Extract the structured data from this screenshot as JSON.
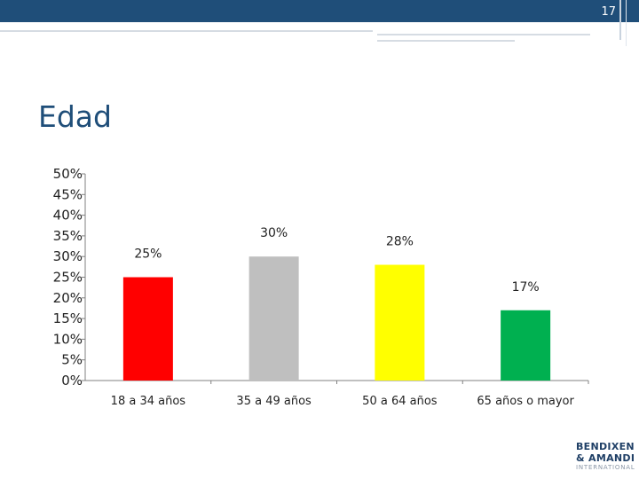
{
  "header": {
    "page_number": "17"
  },
  "slide": {
    "title": "Edad"
  },
  "logo": {
    "line1": "BENDIXEN",
    "line2": "& AMANDI",
    "line3": "INTERNATIONAL"
  },
  "colors": {
    "header_bar": "#1f4e79",
    "title": "#1f4e79"
  },
  "chart_data": {
    "type": "bar",
    "categories": [
      "18 a 34 años",
      "35 a 49 años",
      "50 a 64 años",
      "65 años o mayor"
    ],
    "values": [
      25,
      30,
      28,
      17
    ],
    "data_labels": [
      "25%",
      "30%",
      "28%",
      "17%"
    ],
    "colors": [
      "#ff0000",
      "#bfbfbf",
      "#ffff00",
      "#00b050"
    ],
    "y_ticks": [
      "0%",
      "5%",
      "10%",
      "15%",
      "20%",
      "25%",
      "30%",
      "35%",
      "40%",
      "45%",
      "50%"
    ],
    "ylim": [
      0,
      50
    ],
    "y_unit": "%",
    "grid": false,
    "legend": "none"
  }
}
